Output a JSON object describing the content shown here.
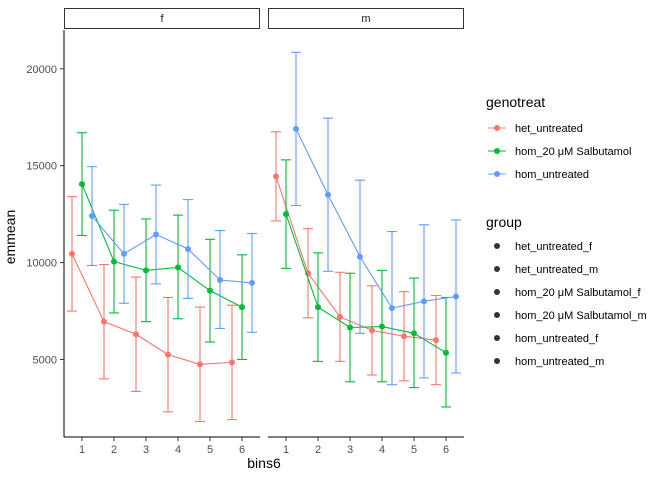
{
  "chart_data": {
    "type": "line",
    "xlabel": "bins6",
    "ylabel": "emmean",
    "x": [
      1,
      2,
      3,
      4,
      5,
      6
    ],
    "ylim": [
      1000,
      22000
    ],
    "yticks": [
      5000,
      10000,
      15000,
      20000
    ],
    "facets": [
      "f",
      "m"
    ],
    "color_legend": {
      "title": "genotreat",
      "entries": [
        "het_untreated",
        "hom_20 μM Salbutamol",
        "hom_untreated"
      ]
    },
    "group_legend": {
      "title": "group",
      "entries": [
        "het_untreated_f",
        "het_untreated_m",
        "hom_20 μM Salbutamol_f",
        "hom_20 μM Salbutamol_m",
        "hom_untreated_f",
        "hom_untreated_m"
      ]
    },
    "colors": {
      "het_untreated": "#f8766d",
      "hom_20 μM Salbutamol": "#00ba38",
      "hom_untreated": "#619cff"
    },
    "series": [
      {
        "facet": "f",
        "genotreat": "het_untreated",
        "dodge": -1,
        "y": [
          10450,
          6950,
          6300,
          5250,
          4750,
          4850
        ],
        "lower": [
          7500,
          4000,
          3350,
          2300,
          1800,
          1900
        ],
        "upper": [
          13400,
          9900,
          9250,
          8200,
          7700,
          7800
        ]
      },
      {
        "facet": "f",
        "genotreat": "hom_20 μM Salbutamol",
        "dodge": 0,
        "y": [
          14050,
          10050,
          9600,
          9750,
          8550,
          7700
        ],
        "lower": [
          11400,
          7400,
          6950,
          7100,
          5900,
          5000
        ],
        "upper": [
          16700,
          12700,
          12250,
          12450,
          11200,
          10400
        ]
      },
      {
        "facet": "f",
        "genotreat": "hom_untreated",
        "dodge": 1,
        "y": [
          12400,
          10450,
          11450,
          10700,
          9100,
          8950
        ],
        "lower": [
          9850,
          7900,
          8900,
          8150,
          6600,
          6400
        ],
        "upper": [
          14950,
          13000,
          14000,
          13250,
          11650,
          11500
        ]
      },
      {
        "facet": "m",
        "genotreat": "het_untreated",
        "dodge": -1,
        "y": [
          14450,
          9450,
          7200,
          6500,
          6200,
          6000
        ],
        "lower": [
          12150,
          7150,
          4900,
          4200,
          3900,
          3700
        ],
        "upper": [
          16750,
          11750,
          9500,
          8800,
          8500,
          8300
        ]
      },
      {
        "facet": "m",
        "genotreat": "hom_20 μM Salbutamol",
        "dodge": 0,
        "y": [
          12500,
          7700,
          6650,
          6700,
          6350,
          5350
        ],
        "lower": [
          9700,
          4900,
          3850,
          3850,
          3550,
          2550
        ],
        "upper": [
          15300,
          10500,
          9450,
          9600,
          9200,
          8200
        ]
      },
      {
        "facet": "m",
        "genotreat": "hom_untreated",
        "dodge": 1,
        "y": [
          16900,
          13500,
          10300,
          7650,
          8000,
          8250
        ],
        "lower": [
          12950,
          9550,
          6350,
          3700,
          4050,
          4300
        ],
        "upper": [
          20850,
          17450,
          14250,
          11600,
          11950,
          12200
        ]
      }
    ]
  }
}
